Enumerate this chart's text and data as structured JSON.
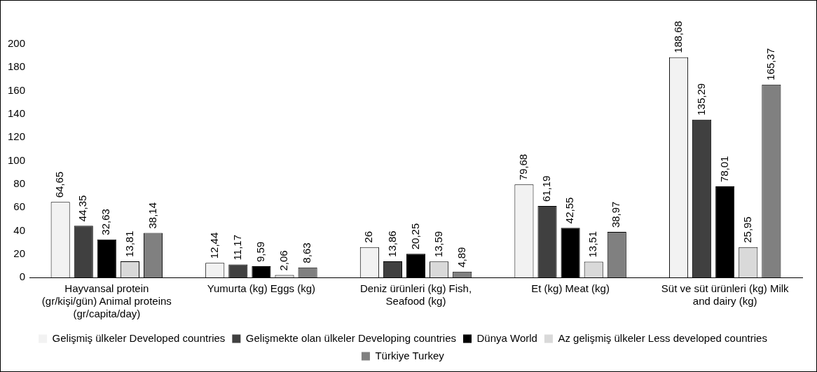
{
  "chart_data": {
    "type": "bar",
    "categories": [
      "Hayvansal protein (gr/kişi/gün)  Animal proteins (gr/capita/day)",
      "Yumurta (kg) Eggs (kg)",
      "Deniz ürünleri (kg) Fish, Seafood (kg)",
      "Et (kg) Meat (kg)",
      "Süt ve süt ürünleri (kg) Milk and dairy (kg)"
    ],
    "series": [
      {
        "name": "Gelişmiş ülkeler Developed countries",
        "color": "#f2f2f2",
        "values": [
          64.65,
          12.44,
          26,
          79.68,
          188.68
        ],
        "value_labels": [
          "64,65",
          "12,44",
          "26",
          "79,68",
          "188,68"
        ]
      },
      {
        "name": "Gelişmekte olan ülkeler Developing countries",
        "color": "#404040",
        "values": [
          44.35,
          11.17,
          13.86,
          61.19,
          135.29
        ],
        "value_labels": [
          "44,35",
          "11,17",
          "13,86",
          "61,19",
          "135,29"
        ]
      },
      {
        "name": "Dünya World",
        "color": "#000000",
        "values": [
          32.63,
          9.59,
          20.25,
          42.55,
          78.01
        ],
        "value_labels": [
          "32,63",
          "9,59",
          "20,25",
          "42,55",
          "78,01"
        ]
      },
      {
        "name": "Az gelişmiş ülkeler Less developed countries",
        "color": "#d9d9d9",
        "values": [
          13.81,
          2.06,
          13.59,
          13.51,
          25.95
        ],
        "value_labels": [
          "13,81",
          "2,06",
          "13,59",
          "13,51",
          "25,95"
        ]
      },
      {
        "name": "Türkiye Turkey",
        "color": "#808080",
        "values": [
          38.14,
          8.63,
          4.89,
          38.97,
          165.37
        ],
        "value_labels": [
          "38,14",
          "8,63",
          "4,89",
          "38,97",
          "165,37"
        ]
      }
    ],
    "ylim": [
      0,
      200
    ],
    "yticks": [
      0,
      20,
      40,
      60,
      80,
      100,
      120,
      140,
      160,
      180,
      200
    ],
    "grid": false,
    "legend": "bottom"
  }
}
